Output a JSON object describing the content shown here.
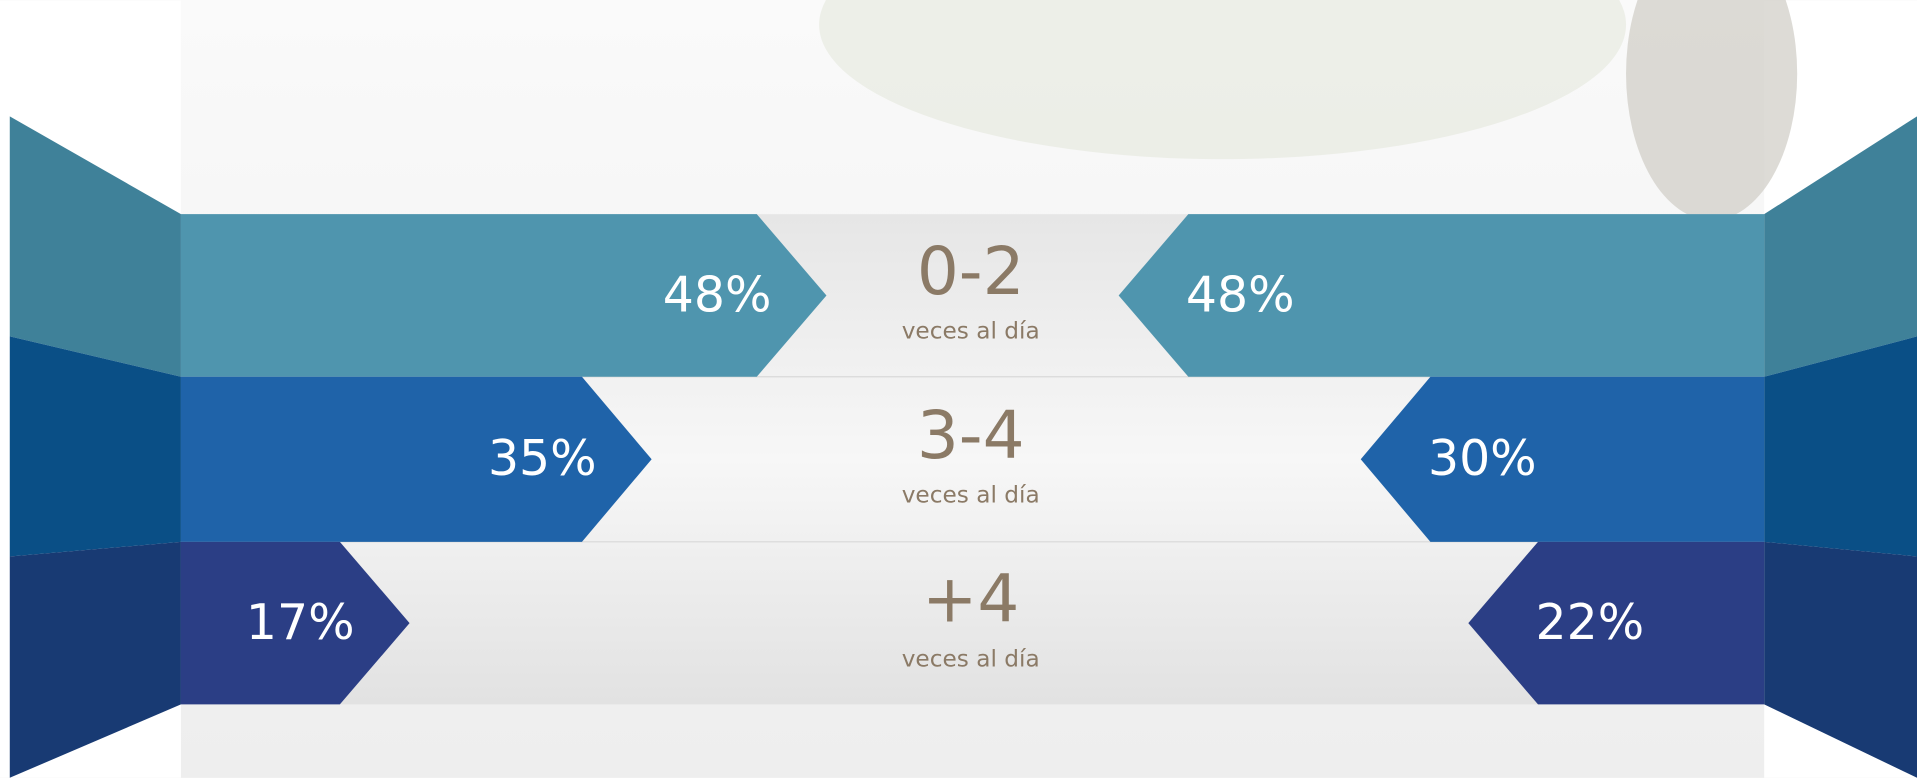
{
  "chart_data": {
    "type": "butterfly",
    "categories": [
      "0-2",
      "3-4",
      "+4"
    ],
    "category_sublabels": [
      "veces al día",
      "veces al día",
      "veces al día"
    ],
    "colors": [
      "#4f95ae",
      "#1f63a9",
      "#2b3e85"
    ],
    "series": [
      {
        "side": "left",
        "values": [
          48,
          35,
          17
        ],
        "value_labels": [
          "48%",
          "35%",
          "17%"
        ]
      },
      {
        "side": "right",
        "values": [
          48,
          30,
          22
        ],
        "value_labels": [
          "48%",
          "30%",
          "22%"
        ]
      }
    ]
  }
}
